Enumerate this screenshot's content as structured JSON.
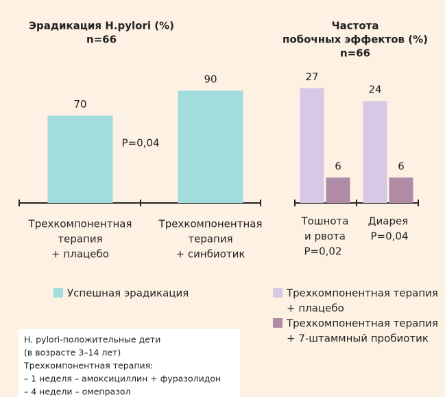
{
  "chart_data": [
    {
      "type": "bar",
      "title": [
        "Эрадикация H.pylori (%)",
        "n=66"
      ],
      "categories": [
        [
          "Трехкомпонентная",
          "терапия",
          "+ плацебо"
        ],
        [
          "Трехкомпонентная",
          "терапия",
          "+ синбиотик"
        ]
      ],
      "series": [
        {
          "name": [
            "Успешная эрадикация"
          ],
          "color": "#a2dcdc",
          "values": [
            70,
            90
          ]
        }
      ],
      "annotations": [
        "P=0,04"
      ]
    },
    {
      "type": "grouped_bar",
      "title": [
        "Частота",
        "побочных эффектов (%)",
        "n=66"
      ],
      "categories": [
        [
          "Тошнота",
          "и рвота"
        ],
        [
          "Диарея"
        ]
      ],
      "series": [
        {
          "name": [
            "Трехкомпонентная терапия",
            "+ плацебо"
          ],
          "color": "#d7c9e6",
          "values": [
            27,
            24
          ]
        },
        {
          "name": [
            "Трехкомпонентная терапия",
            "+ 7-штаммный пробиотик"
          ],
          "color": "#b08ba6",
          "values": [
            6,
            6
          ]
        }
      ],
      "annotations": [
        "P=0,02",
        "P=0,04"
      ]
    }
  ],
  "note": [
    "H. pylori-положительные дети",
    "(в возрасте 3–14 лет)",
    "Трехкомпонентная терапия:",
    "– 1 неделя – амоксициллин + фуразолидон",
    "– 4 недели – омепразол"
  ]
}
